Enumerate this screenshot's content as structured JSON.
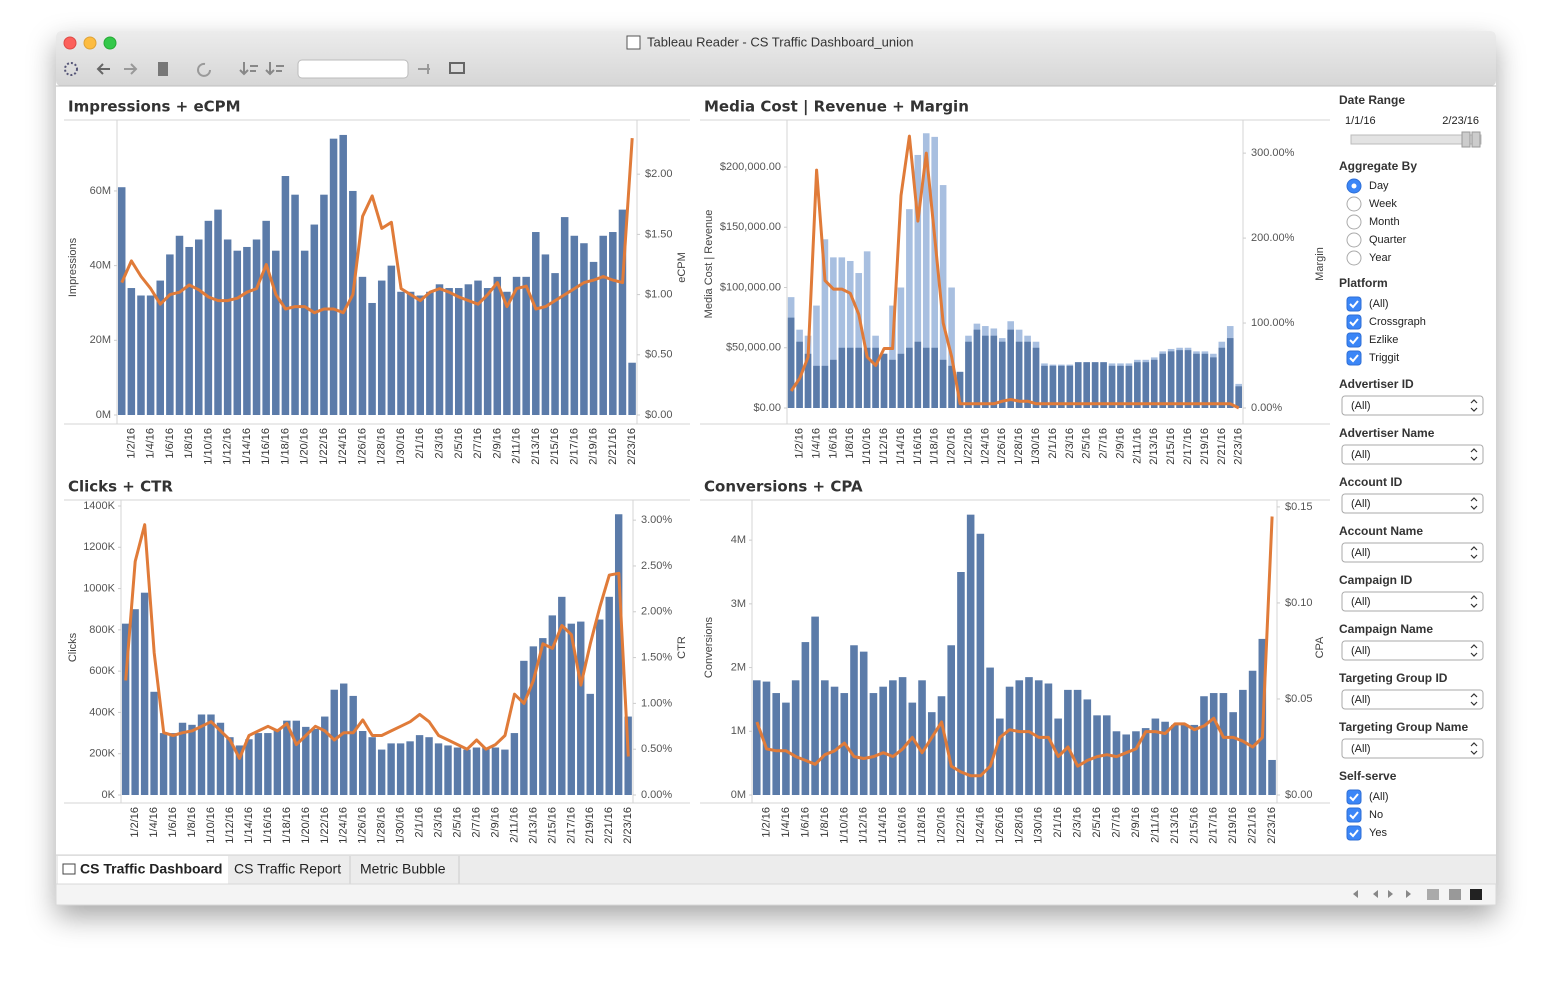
{
  "window": {
    "title": "Tableau Reader - CS Traffic Dashboard_union"
  },
  "chart_data": [
    {
      "type": "combo",
      "title": "Impressions + eCPM",
      "y_label": "Impressions",
      "y2_label": "eCPM",
      "categories": [
        null,
        "1/2/16",
        null,
        "1/4/16",
        null,
        "1/6/16",
        null,
        "1/8/16",
        null,
        "1/10/16",
        null,
        "1/12/16",
        null,
        "1/14/16",
        null,
        "1/16/16",
        null,
        "1/18/16",
        null,
        "1/20/16",
        null,
        "1/22/16",
        null,
        "1/24/16",
        null,
        "1/26/16",
        null,
        "1/28/16",
        null,
        "1/30/16",
        null,
        "2/1/16",
        null,
        "2/3/16",
        null,
        "2/5/16",
        null,
        "2/7/16",
        null,
        "2/9/16",
        null,
        "2/11/16",
        null,
        "2/13/16",
        null,
        "2/15/16",
        null,
        "2/17/16",
        null,
        "2/19/16",
        null,
        "2/21/16",
        null,
        "2/23/16"
      ],
      "series": [
        {
          "mark": "bar",
          "color": "#5b7ba9",
          "values": [
            61,
            34,
            32,
            32,
            36,
            43,
            48,
            45,
            47,
            52,
            55,
            47,
            44,
            45,
            47,
            52,
            44,
            64,
            59,
            44,
            51,
            59,
            74,
            75,
            60,
            37,
            30,
            36,
            40,
            33,
            33,
            32,
            33,
            35,
            34,
            34,
            35,
            36,
            34,
            37,
            33,
            37,
            37,
            49,
            43,
            38,
            53,
            48,
            46,
            41,
            48,
            49,
            55,
            14
          ]
        },
        {
          "mark": "line",
          "color": "#e07b39",
          "axis": "y2",
          "values": [
            1.1,
            1.28,
            1.15,
            1.05,
            0.92,
            1.0,
            1.02,
            1.08,
            1.04,
            0.98,
            0.95,
            0.95,
            0.97,
            1.02,
            1.05,
            1.25,
            1.0,
            0.88,
            0.9,
            0.9,
            0.85,
            0.88,
            0.88,
            0.85,
            1.0,
            1.65,
            1.82,
            1.55,
            1.6,
            1.05,
            1.0,
            0.95,
            1.02,
            1.05,
            1.02,
            0.98,
            0.95,
            0.92,
            1.0,
            1.1,
            0.9,
            1.05,
            1.07,
            0.88,
            0.9,
            0.95,
            1.0,
            1.05,
            1.1,
            1.12,
            1.15,
            1.12,
            1.1,
            2.3
          ]
        }
      ],
      "ylim": [
        0,
        79
      ],
      "yticks": [
        {
          "value": 0,
          "label": "0M"
        },
        {
          "value": 20,
          "label": "20M"
        },
        {
          "value": 40,
          "label": "40M"
        },
        {
          "value": 60,
          "label": "60M"
        }
      ],
      "y2lim": [
        0,
        2.45
      ],
      "y2ticks": [
        {
          "value": 0,
          "label": "$0.00"
        },
        {
          "value": 0.5,
          "label": "$0.50"
        },
        {
          "value": 1,
          "label": "$1.00"
        },
        {
          "value": 1.5,
          "label": "$1.50"
        },
        {
          "value": 2,
          "label": "$2.00"
        }
      ]
    },
    {
      "type": "combo",
      "title": "Media Cost | Revenue + Margin",
      "y_label": "Media Cost | Revenue",
      "y2_label": "Margin",
      "categories": [
        null,
        "1/2/16",
        null,
        "1/4/16",
        null,
        "1/6/16",
        null,
        "1/8/16",
        null,
        "1/10/16",
        null,
        "1/12/16",
        null,
        "1/14/16",
        null,
        "1/16/16",
        null,
        "1/18/16",
        null,
        "1/20/16",
        null,
        "1/22/16",
        null,
        "1/24/16",
        null,
        "1/26/16",
        null,
        "1/28/16",
        null,
        "1/30/16",
        null,
        "2/1/16",
        null,
        "2/3/16",
        null,
        "2/5/16",
        null,
        "2/7/16",
        null,
        "2/9/16",
        null,
        "2/11/16",
        null,
        "2/13/16",
        null,
        "2/15/16",
        null,
        "2/17/16",
        null,
        "2/19/16",
        null,
        "2/21/16",
        null,
        "2/23/16"
      ],
      "series": [
        {
          "mark": "bar",
          "color": "#a8bfe0",
          "values": [
            92000,
            65000,
            60000,
            85000,
            140000,
            125000,
            125000,
            122000,
            112000,
            130000,
            60000,
            45000,
            85000,
            100000,
            165000,
            210000,
            228000,
            225000,
            185000,
            100000,
            30000,
            60000,
            70000,
            68000,
            66000,
            58000,
            72000,
            65000,
            60000,
            55000,
            37000,
            36000,
            36000,
            36000,
            38000,
            38000,
            38000,
            38000,
            37000,
            37000,
            37000,
            40000,
            40000,
            42000,
            47000,
            49000,
            50000,
            50000,
            47000,
            47000,
            45000,
            55000,
            68000,
            20000
          ]
        },
        {
          "mark": "bar",
          "color": "#5b7ba9",
          "values": [
            75000,
            55000,
            45000,
            35000,
            35000,
            40000,
            50000,
            50000,
            50000,
            50000,
            50000,
            45000,
            40000,
            45000,
            50000,
            55000,
            50000,
            50000,
            40000,
            35000,
            30000,
            55000,
            65000,
            60000,
            60000,
            55000,
            65000,
            55000,
            55000,
            50000,
            35000,
            35000,
            35000,
            35000,
            38000,
            38000,
            38000,
            38000,
            35000,
            35000,
            35000,
            38000,
            38000,
            40000,
            45000,
            47000,
            48000,
            48000,
            45000,
            45000,
            42000,
            50000,
            58000,
            18000
          ]
        },
        {
          "mark": "line",
          "color": "#e07b39",
          "axis": "y2",
          "values": [
            20,
            35,
            60,
            280,
            150,
            140,
            140,
            135,
            110,
            60,
            50,
            70,
            70,
            250,
            320,
            220,
            300,
            200,
            100,
            60,
            5,
            5,
            5,
            5,
            5,
            8,
            10,
            8,
            8,
            5,
            5,
            5,
            5,
            5,
            5,
            5,
            5,
            5,
            5,
            5,
            5,
            5,
            5,
            5,
            5,
            5,
            5,
            5,
            5,
            5,
            5,
            5,
            5,
            0
          ]
        }
      ],
      "ylim": [
        0,
        239000
      ],
      "yticks": [
        {
          "value": 0,
          "label": "$0.00"
        },
        {
          "value": 50000,
          "label": "$50,000.00"
        },
        {
          "value": 100000,
          "label": "$100,000.00"
        },
        {
          "value": 150000,
          "label": "$150,000.00"
        },
        {
          "value": 200000,
          "label": "$200,000.00"
        }
      ],
      "y2lim": [
        0,
        339
      ],
      "y2ticks": [
        {
          "value": 0,
          "label": "0.00%"
        },
        {
          "value": 100,
          "label": "100.00%"
        },
        {
          "value": 200,
          "label": "200.00%"
        },
        {
          "value": 300,
          "label": "300.00%"
        }
      ]
    },
    {
      "type": "combo",
      "title": "Clicks + CTR",
      "y_label": "Clicks",
      "y2_label": "CTR",
      "categories": [
        null,
        "1/2/16",
        null,
        "1/4/16",
        null,
        "1/6/16",
        null,
        "1/8/16",
        null,
        "1/10/16",
        null,
        "1/12/16",
        null,
        "1/14/16",
        null,
        "1/16/16",
        null,
        "1/18/16",
        null,
        "1/20/16",
        null,
        "1/22/16",
        null,
        "1/24/16",
        null,
        "1/26/16",
        null,
        "1/28/16",
        null,
        "1/30/16",
        null,
        "2/1/16",
        null,
        "2/3/16",
        null,
        "2/5/16",
        null,
        "2/7/16",
        null,
        "2/9/16",
        null,
        "2/11/16",
        null,
        "2/13/16",
        null,
        "2/15/16",
        null,
        "2/17/16",
        null,
        "2/19/16",
        null,
        "2/21/16",
        null,
        "2/23/16"
      ],
      "series": [
        {
          "mark": "bar",
          "color": "#5b7ba9",
          "values": [
            830,
            900,
            980,
            500,
            300,
            300,
            350,
            340,
            390,
            390,
            350,
            280,
            240,
            270,
            300,
            300,
            320,
            360,
            360,
            330,
            320,
            380,
            510,
            540,
            480,
            310,
            280,
            220,
            250,
            250,
            260,
            290,
            280,
            250,
            240,
            230,
            220,
            230,
            230,
            230,
            220,
            300,
            650,
            720,
            760,
            870,
            960,
            830,
            840,
            490,
            850,
            960,
            1360,
            380
          ]
        },
        {
          "mark": "line",
          "color": "#e07b39",
          "axis": "y2",
          "values": [
            1.25,
            2.55,
            2.95,
            1.55,
            0.68,
            0.65,
            0.68,
            0.7,
            0.75,
            0.8,
            0.7,
            0.6,
            0.4,
            0.65,
            0.7,
            0.75,
            0.7,
            0.78,
            0.55,
            0.65,
            0.75,
            0.7,
            0.6,
            0.68,
            0.68,
            0.82,
            0.65,
            0.65,
            0.7,
            0.75,
            0.8,
            0.88,
            0.8,
            0.65,
            0.6,
            0.55,
            0.5,
            0.6,
            0.5,
            0.55,
            0.65,
            1.1,
            1.0,
            1.25,
            1.65,
            1.6,
            1.85,
            1.75,
            1.2,
            1.65,
            2.05,
            2.4,
            2.42,
            0.42
          ]
        }
      ],
      "ylim": [
        0,
        1429
      ],
      "yticks": [
        {
          "value": 0,
          "label": "0K"
        },
        {
          "value": 200,
          "label": "200K"
        },
        {
          "value": 400,
          "label": "400K"
        },
        {
          "value": 600,
          "label": "600K"
        },
        {
          "value": 800,
          "label": "800K"
        },
        {
          "value": 1000,
          "label": "1000K"
        },
        {
          "value": 1200,
          "label": "1200K"
        },
        {
          "value": 1400,
          "label": "1400K"
        }
      ],
      "y2lim": [
        0,
        3.22
      ],
      "y2ticks": [
        {
          "value": 0,
          "label": "0.00%"
        },
        {
          "value": 0.5,
          "label": "0.50%"
        },
        {
          "value": 1,
          "label": "1.00%"
        },
        {
          "value": 1.5,
          "label": "1.50%"
        },
        {
          "value": 2,
          "label": "2.00%"
        },
        {
          "value": 2.5,
          "label": "2.50%"
        },
        {
          "value": 3,
          "label": "3.00%"
        }
      ]
    },
    {
      "type": "combo",
      "title": "Conversions + CPA",
      "y_label": "Conversions",
      "y2_label": "CPA",
      "categories": [
        null,
        "1/2/16",
        null,
        "1/4/16",
        null,
        "1/6/16",
        null,
        "1/8/16",
        null,
        "1/10/16",
        null,
        "1/12/16",
        null,
        "1/14/16",
        null,
        "1/16/16",
        null,
        "1/18/16",
        null,
        "1/20/16",
        null,
        "1/22/16",
        null,
        "1/24/16",
        null,
        "1/26/16",
        null,
        "1/28/16",
        null,
        "1/30/16",
        null,
        "2/1/16",
        null,
        "2/3/16",
        null,
        "2/5/16",
        null,
        "2/7/16",
        null,
        "2/9/16",
        null,
        "2/11/16",
        null,
        "2/13/16",
        null,
        "2/15/16",
        null,
        "2/17/16",
        null,
        "2/19/16",
        null,
        "2/21/16",
        null,
        "2/23/16"
      ],
      "series": [
        {
          "mark": "bar",
          "color": "#5b7ba9",
          "values": [
            1.8,
            1.78,
            1.6,
            1.45,
            1.8,
            2.4,
            2.8,
            1.8,
            1.7,
            1.6,
            2.35,
            2.25,
            1.6,
            1.7,
            1.8,
            1.85,
            1.45,
            1.8,
            1.3,
            1.55,
            2.35,
            3.5,
            4.4,
            4.1,
            2.0,
            1.2,
            1.7,
            1.8,
            1.85,
            1.8,
            1.75,
            1.2,
            1.65,
            1.65,
            1.5,
            1.25,
            1.25,
            1.0,
            0.95,
            1.0,
            1.05,
            1.2,
            1.15,
            1.1,
            1.1,
            1.1,
            1.55,
            1.6,
            1.6,
            1.3,
            1.65,
            1.95,
            2.45,
            0.55
          ]
        },
        {
          "mark": "line",
          "color": "#e07b39",
          "axis": "y2",
          "values": [
            0.038,
            0.024,
            0.023,
            0.023,
            0.02,
            0.018,
            0.016,
            0.021,
            0.023,
            0.027,
            0.02,
            0.019,
            0.02,
            0.022,
            0.02,
            0.024,
            0.03,
            0.022,
            0.03,
            0.038,
            0.015,
            0.012,
            0.01,
            0.01,
            0.015,
            0.03,
            0.034,
            0.033,
            0.033,
            0.03,
            0.03,
            0.02,
            0.025,
            0.015,
            0.018,
            0.02,
            0.021,
            0.02,
            0.022,
            0.024,
            0.033,
            0.033,
            0.032,
            0.037,
            0.037,
            0.034,
            0.036,
            0.04,
            0.03,
            0.03,
            0.028,
            0.025,
            0.03,
            0.145
          ]
        }
      ],
      "ylim": [
        0,
        4.63
      ],
      "yticks": [
        {
          "value": 0,
          "label": "0M"
        },
        {
          "value": 1,
          "label": "1M"
        },
        {
          "value": 2,
          "label": "2M"
        },
        {
          "value": 3,
          "label": "3M"
        },
        {
          "value": 4,
          "label": "4M"
        }
      ],
      "y2lim": [
        0,
        0.1536
      ],
      "y2ticks": [
        {
          "value": 0,
          "label": "$0.00"
        },
        {
          "value": 0.05,
          "label": "$0.05"
        },
        {
          "value": 0.1,
          "label": "$0.10"
        },
        {
          "value": 0.15,
          "label": "$0.15"
        }
      ]
    }
  ],
  "filters": {
    "date_range": {
      "label": "Date Range",
      "start": "1/1/16",
      "end": "2/23/16"
    },
    "aggregate_by": {
      "label": "Aggregate By",
      "options": [
        "Day",
        "Week",
        "Month",
        "Quarter",
        "Year"
      ],
      "selected": 0
    },
    "platform": {
      "label": "Platform",
      "options": [
        "(All)",
        "Crossgraph",
        "Ezlike",
        "Triggit"
      ]
    },
    "dropdowns": [
      {
        "label": "Advertiser ID",
        "value": "(All)"
      },
      {
        "label": "Advertiser Name",
        "value": "(All)"
      },
      {
        "label": "Account ID",
        "value": "(All)"
      },
      {
        "label": "Account Name",
        "value": "(All)"
      },
      {
        "label": "Campaign ID",
        "value": "(All)"
      },
      {
        "label": "Campaign Name",
        "value": "(All)"
      },
      {
        "label": "Targeting Group ID",
        "value": "(All)"
      },
      {
        "label": "Targeting Group Name",
        "value": "(All)"
      }
    ],
    "self_serve": {
      "label": "Self-serve",
      "options": [
        "(All)",
        "No",
        "Yes"
      ]
    }
  },
  "tabs": [
    "CS Traffic Dashboard",
    "CS Traffic Report",
    "Metric Bubble"
  ]
}
